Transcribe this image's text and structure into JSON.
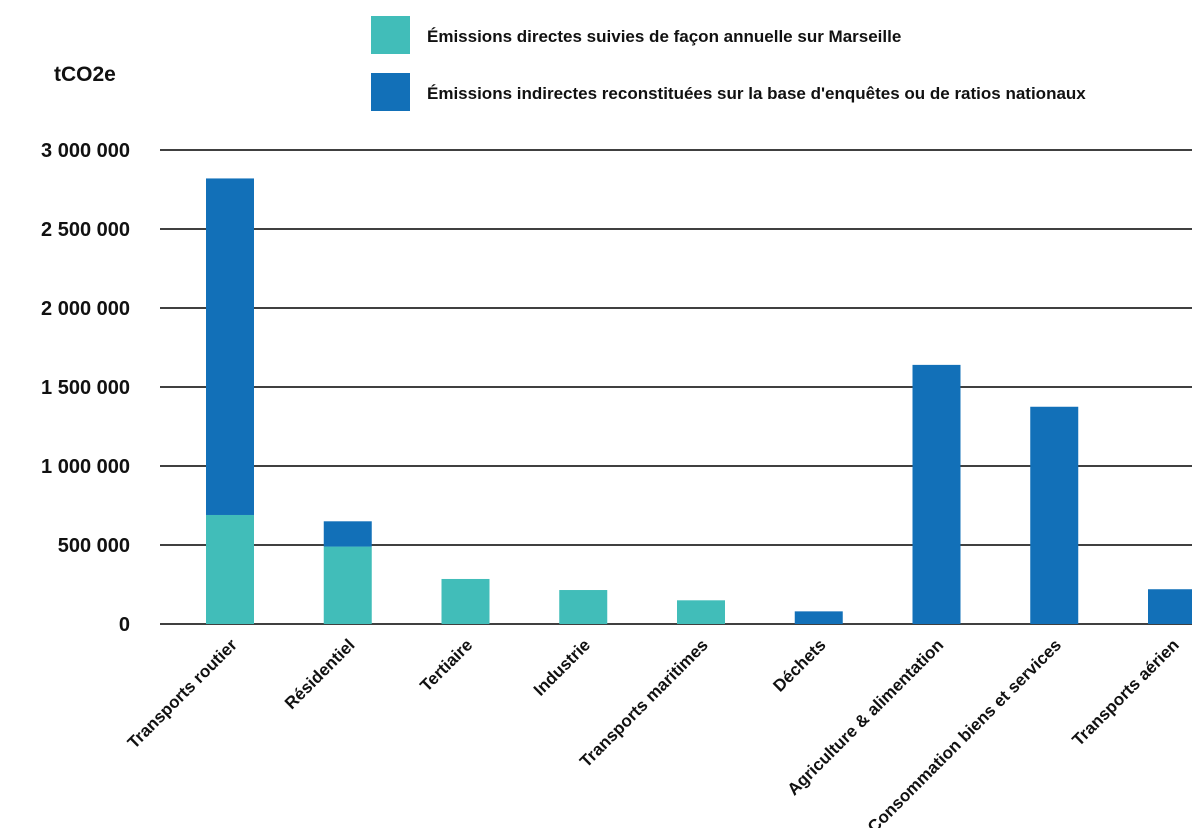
{
  "chart_data": {
    "type": "bar",
    "stacked": true,
    "title": "",
    "xlabel": "",
    "ylabel": "tCO2e",
    "ylim": [
      0,
      3000000
    ],
    "yticks": [
      0,
      500000,
      1000000,
      1500000,
      2000000,
      2500000,
      3000000
    ],
    "ytick_labels": [
      "0",
      "500 000",
      "1 000 000",
      "1 500 000",
      "2 000 000",
      "2 500 000",
      "3 000 000"
    ],
    "grid": true,
    "legend_position": "top",
    "categories": [
      "Transports routier",
      "Résidentiel",
      "Tertiaire",
      "Industrie",
      "Transports maritimes",
      "Déchets",
      "Agriculture & alimentation",
      "Consommation biens et services",
      "Transports aérien"
    ],
    "series": [
      {
        "name": "Émissions directes suivies de façon annuelle sur Marseille",
        "color": "#41bdb9",
        "values": [
          690000,
          490000,
          285000,
          215000,
          150000,
          0,
          0,
          0,
          0
        ]
      },
      {
        "name": "Émissions indirectes reconstituées sur la base d'enquêtes ou de ratios nationaux",
        "color": "#1270b8",
        "values": [
          2130000,
          160000,
          0,
          0,
          0,
          80000,
          1640000,
          1375000,
          220000
        ]
      }
    ]
  }
}
